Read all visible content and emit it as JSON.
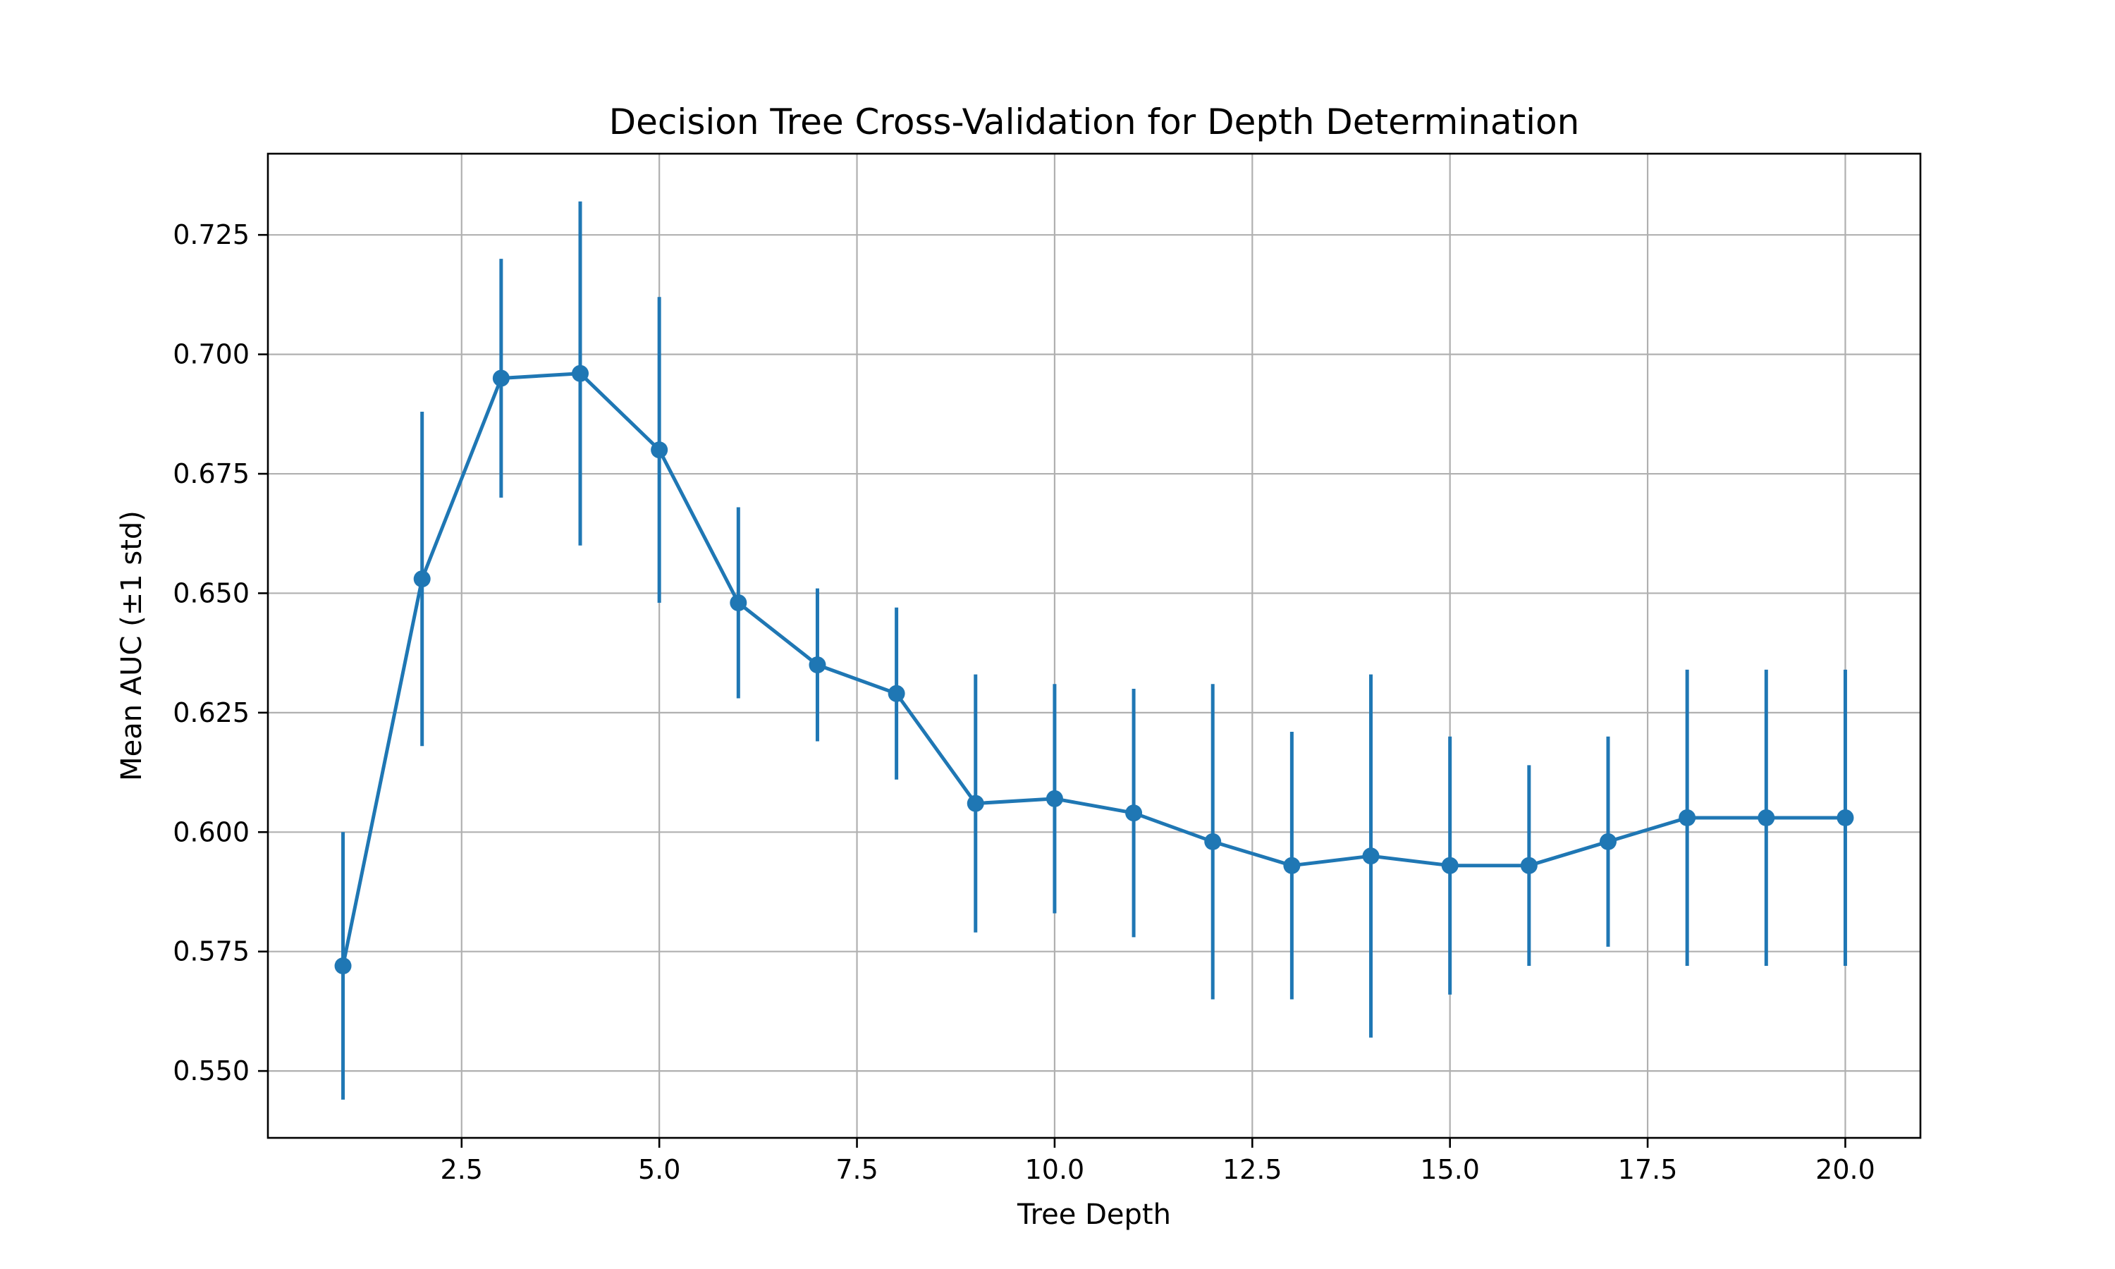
{
  "chart_data": {
    "type": "line",
    "title": "Decision Tree Cross-Validation for Depth Determination",
    "xlabel": "Tree Depth",
    "ylabel": "Mean AUC (±1 std)",
    "xlim": [
      0.05,
      20.95
    ],
    "ylim": [
      0.536,
      0.742
    ],
    "xticks": [
      2.5,
      5.0,
      7.5,
      10.0,
      12.5,
      15.0,
      17.5,
      20.0
    ],
    "xtick_labels": [
      "2.5",
      "5.0",
      "7.5",
      "10.0",
      "12.5",
      "15.0",
      "17.5",
      "20.0"
    ],
    "yticks": [
      0.55,
      0.575,
      0.6,
      0.625,
      0.65,
      0.675,
      0.7,
      0.725
    ],
    "ytick_labels": [
      "0.550",
      "0.575",
      "0.600",
      "0.625",
      "0.650",
      "0.675",
      "0.700",
      "0.725"
    ],
    "grid": true,
    "color": "#1f77b4",
    "series": [
      {
        "x": [
          1,
          2,
          3,
          4,
          5,
          6,
          7,
          8,
          9,
          10,
          11,
          12,
          13,
          14,
          15,
          16,
          17,
          18,
          19,
          20
        ],
        "y": [
          0.572,
          0.653,
          0.695,
          0.696,
          0.68,
          0.648,
          0.635,
          0.629,
          0.606,
          0.607,
          0.604,
          0.598,
          0.593,
          0.595,
          0.593,
          0.593,
          0.598,
          0.603,
          0.603,
          0.603
        ],
        "err": [
          0.028,
          0.035,
          0.025,
          0.036,
          0.032,
          0.02,
          0.016,
          0.018,
          0.027,
          0.024,
          0.026,
          0.033,
          0.028,
          0.038,
          0.027,
          0.021,
          0.022,
          0.031,
          0.031,
          0.031
        ]
      }
    ]
  }
}
